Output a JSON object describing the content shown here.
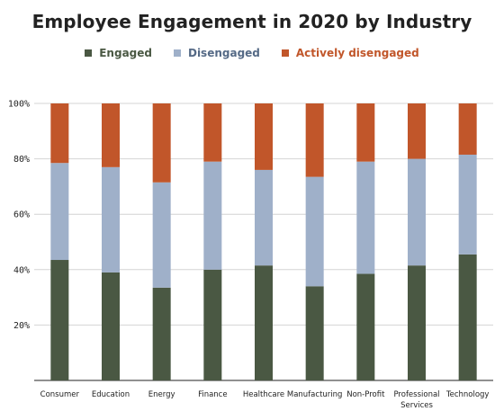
{
  "chart_data": {
    "type": "bar",
    "stacked": true,
    "title": "Employee Engagement in 2020 by Industry",
    "categories": [
      "Consumer",
      "Education",
      "Energy",
      "Finance",
      "Healthcare",
      "Manufacturing",
      "Non-Profit",
      "Professional Services",
      "Technology"
    ],
    "series": [
      {
        "name": "Engaged",
        "color": "#4a5843",
        "values": [
          43.5,
          39,
          33.5,
          40,
          41.5,
          34,
          38.5,
          41.5,
          45.5
        ]
      },
      {
        "name": "Disengaged",
        "color": "#9fb0c9",
        "values": [
          35,
          38,
          38,
          39,
          34.5,
          39.5,
          40.5,
          38.5,
          36
        ]
      },
      {
        "name": "Actively disengaged",
        "color": "#c1562a",
        "values": [
          21.5,
          23,
          28.5,
          21,
          24,
          26.5,
          21,
          20,
          18.5
        ]
      }
    ],
    "ylim": [
      0,
      100
    ],
    "yticks": [
      "20%",
      "40%",
      "60%",
      "80%",
      "100%"
    ],
    "ytick_values": [
      20,
      40,
      60,
      80,
      100
    ],
    "xlabel": "",
    "ylabel": "",
    "legend_position": "top-center",
    "grid": true,
    "legend_text_colors": [
      "#4a5843",
      "#556a86",
      "#c1562a"
    ]
  }
}
